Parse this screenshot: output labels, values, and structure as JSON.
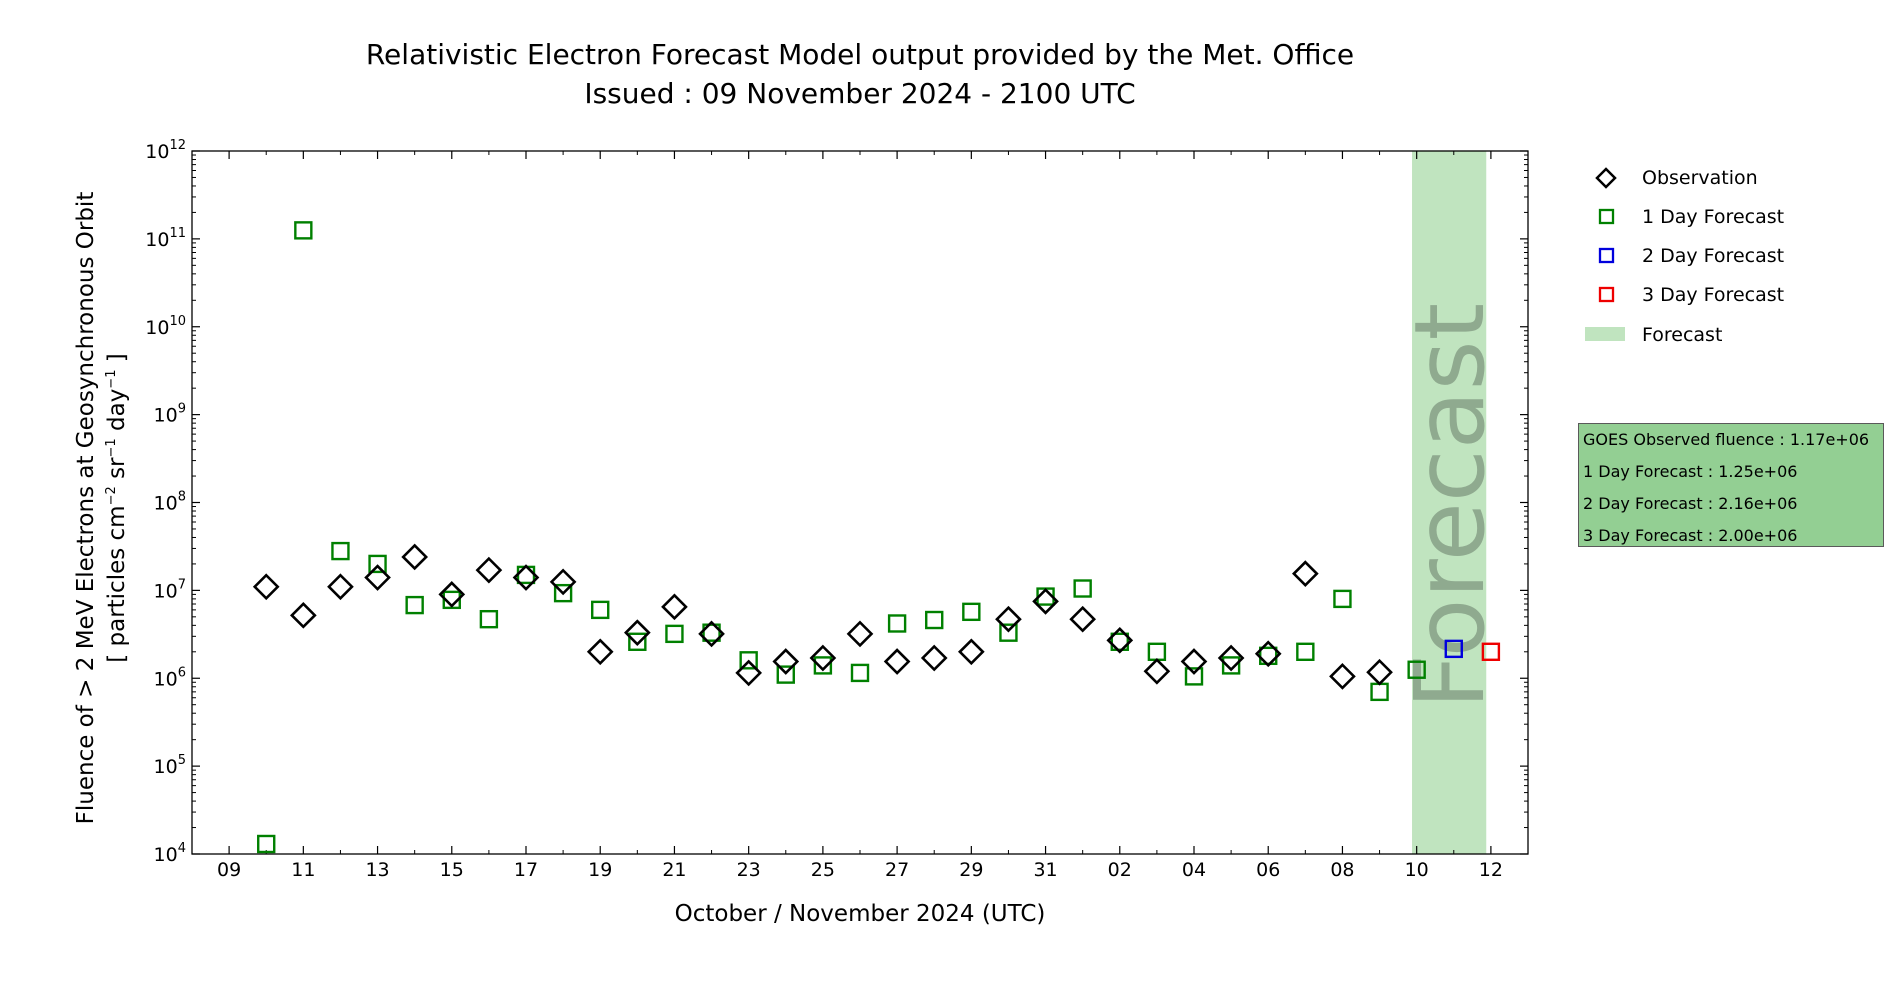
{
  "colors": {
    "observation": "#000000",
    "forecast_1day": "#008000",
    "forecast_2day": "#0000dd",
    "forecast_3day": "#ee0000",
    "forecast_band": "#c0e4bf",
    "forecast_text": "#8faa8f",
    "info_box": "#93cf93"
  },
  "legend": {
    "observation": "Observation",
    "forecast_1day": "1 Day Forecast",
    "forecast_2day": "2 Day Forecast",
    "forecast_3day": "3 Day Forecast",
    "forecast": "Forecast"
  },
  "info": {
    "goes": "GOES Observed fluence : 1.17e+06",
    "day1": "1 Day Forecast : 1.25e+06",
    "day2": "2 Day Forecast : 2.16e+06",
    "day3": "3 Day Forecast : 2.00e+06"
  },
  "chart_data": {
    "type": "scatter",
    "title": "Relativistic Electron Forecast Model output provided by the Met. Office",
    "subtitle": "Issued : 09 November 2024 - 2100 UTC",
    "xlabel": "October / November 2024 (UTC)",
    "ylabel_line1": "Fluence of > 2 MeV Electrons at Geosynchronous Orbit",
    "ylabel_line2_parts": [
      "[ particles cm",
      "−2",
      " sr",
      "−1",
      " day",
      "−1",
      " ]"
    ],
    "yscale": "log",
    "ylim_exponents": [
      4,
      12
    ],
    "y_tick_base": "10",
    "y_tick_exponents": [
      "4",
      "5",
      "6",
      "7",
      "8",
      "9",
      "10",
      "11",
      "12"
    ],
    "xlim": [
      "2024-10-08",
      "2024-11-13"
    ],
    "x_ticks": [
      {
        "date": "2024-10-09",
        "label": "09"
      },
      {
        "date": "2024-10-11",
        "label": "11"
      },
      {
        "date": "2024-10-13",
        "label": "13"
      },
      {
        "date": "2024-10-15",
        "label": "15"
      },
      {
        "date": "2024-10-17",
        "label": "17"
      },
      {
        "date": "2024-10-19",
        "label": "19"
      },
      {
        "date": "2024-10-21",
        "label": "21"
      },
      {
        "date": "2024-10-23",
        "label": "23"
      },
      {
        "date": "2024-10-25",
        "label": "25"
      },
      {
        "date": "2024-10-27",
        "label": "27"
      },
      {
        "date": "2024-10-29",
        "label": "29"
      },
      {
        "date": "2024-10-31",
        "label": "31"
      },
      {
        "date": "2024-11-02",
        "label": "02"
      },
      {
        "date": "2024-11-04",
        "label": "04"
      },
      {
        "date": "2024-11-06",
        "label": "06"
      },
      {
        "date": "2024-11-08",
        "label": "08"
      },
      {
        "date": "2024-11-10",
        "label": "10"
      },
      {
        "date": "2024-11-12",
        "label": "12"
      }
    ],
    "forecast_band": {
      "start": "2024-11-09T21:00",
      "end": "2024-11-11T21:00",
      "label": "Forecast"
    },
    "series": [
      {
        "name": "Observation",
        "marker": "diamond",
        "points": [
          [
            "2024-10-10",
            11000000.0
          ],
          [
            "2024-10-11",
            5200000.0
          ],
          [
            "2024-10-12",
            11000000.0
          ],
          [
            "2024-10-13",
            14000000.0
          ],
          [
            "2024-10-14",
            24000000.0
          ],
          [
            "2024-10-15",
            9000000.0
          ],
          [
            "2024-10-16",
            17000000.0
          ],
          [
            "2024-10-17",
            14000000.0
          ],
          [
            "2024-10-18",
            12500000.0
          ],
          [
            "2024-10-19",
            2000000.0
          ],
          [
            "2024-10-20",
            3300000.0
          ],
          [
            "2024-10-21",
            6500000.0
          ],
          [
            "2024-10-22",
            3200000.0
          ],
          [
            "2024-10-23",
            1150000.0
          ],
          [
            "2024-10-24",
            1550000.0
          ],
          [
            "2024-10-25",
            1700000.0
          ],
          [
            "2024-10-26",
            3200000.0
          ],
          [
            "2024-10-27",
            1550000.0
          ],
          [
            "2024-10-28",
            1700000.0
          ],
          [
            "2024-10-29",
            2000000.0
          ],
          [
            "2024-10-30",
            4700000.0
          ],
          [
            "2024-10-31",
            7500000.0
          ],
          [
            "2024-11-01",
            4700000.0
          ],
          [
            "2024-11-02",
            2700000.0
          ],
          [
            "2024-11-03",
            1200000.0
          ],
          [
            "2024-11-04",
            1550000.0
          ],
          [
            "2024-11-05",
            1700000.0
          ],
          [
            "2024-11-06",
            1900000.0
          ],
          [
            "2024-11-07",
            15500000.0
          ],
          [
            "2024-11-08",
            1050000.0
          ],
          [
            "2024-11-09",
            1170000.0
          ]
        ]
      },
      {
        "name": "1 Day Forecast",
        "marker": "square",
        "points": [
          [
            "2024-10-10",
            13000.0
          ],
          [
            "2024-10-11",
            125000000000.0
          ],
          [
            "2024-10-12",
            28000000.0
          ],
          [
            "2024-10-13",
            20000000.0
          ],
          [
            "2024-10-14",
            6800000.0
          ],
          [
            "2024-10-15",
            7800000.0
          ],
          [
            "2024-10-16",
            4700000.0
          ],
          [
            "2024-10-17",
            15000000.0
          ],
          [
            "2024-10-18",
            9300000.0
          ],
          [
            "2024-10-19",
            6000000.0
          ],
          [
            "2024-10-20",
            2600000.0
          ],
          [
            "2024-10-21",
            3200000.0
          ],
          [
            "2024-10-22",
            3300000.0
          ],
          [
            "2024-10-23",
            1600000.0
          ],
          [
            "2024-10-24",
            1100000.0
          ],
          [
            "2024-10-25",
            1400000.0
          ],
          [
            "2024-10-26",
            1150000.0
          ],
          [
            "2024-10-27",
            4200000.0
          ],
          [
            "2024-10-28",
            4600000.0
          ],
          [
            "2024-10-29",
            5700000.0
          ],
          [
            "2024-10-30",
            3300000.0
          ],
          [
            "2024-10-31",
            8500000.0
          ],
          [
            "2024-11-01",
            10500000.0
          ],
          [
            "2024-11-02",
            2600000.0
          ],
          [
            "2024-11-03",
            2000000.0
          ],
          [
            "2024-11-04",
            1050000.0
          ],
          [
            "2024-11-05",
            1400000.0
          ],
          [
            "2024-11-06",
            1800000.0
          ],
          [
            "2024-11-07",
            2000000.0
          ],
          [
            "2024-11-08",
            8000000.0
          ],
          [
            "2024-11-09",
            700000.0
          ],
          [
            "2024-11-10",
            1250000.0
          ]
        ]
      },
      {
        "name": "2 Day Forecast",
        "marker": "square",
        "points": [
          [
            "2024-11-11",
            2160000.0
          ]
        ]
      },
      {
        "name": "3 Day Forecast",
        "marker": "square",
        "points": [
          [
            "2024-11-12",
            2000000.0
          ]
        ]
      }
    ],
    "legend_position": "upper-right-outside",
    "grid": false
  }
}
